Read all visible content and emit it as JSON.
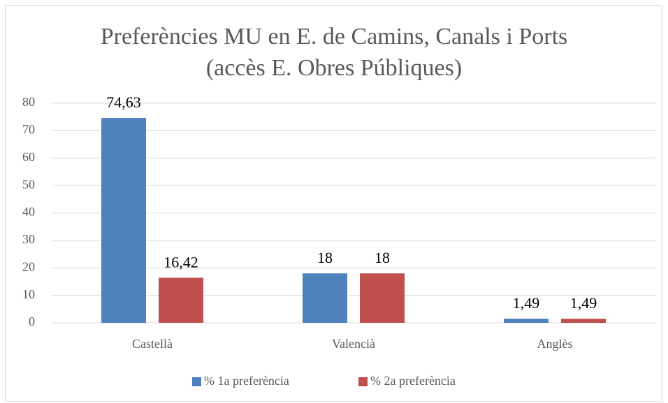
{
  "chart_data": {
    "type": "bar",
    "title": [
      "Preferències MU en E. de Camins, Canals i Ports",
      "(accès E. Obres Públiques)"
    ],
    "categories": [
      "Castellà",
      "Valencià",
      "Anglès"
    ],
    "series": [
      {
        "name": "% 1a preferència",
        "color": "#4f81bd",
        "values": [
          74.63,
          18,
          1.49
        ],
        "value_labels": [
          "74,63",
          "18",
          "1,49"
        ]
      },
      {
        "name": "% 2a preferència",
        "color": "#c0504d",
        "values": [
          16.42,
          18,
          1.49
        ],
        "value_labels": [
          "16,42",
          "18",
          "1,49"
        ]
      }
    ],
    "ylim": [
      0,
      80
    ],
    "yticks": [
      0,
      10,
      20,
      30,
      40,
      50,
      60,
      70,
      80
    ],
    "grid": true,
    "legend": "bottom"
  }
}
